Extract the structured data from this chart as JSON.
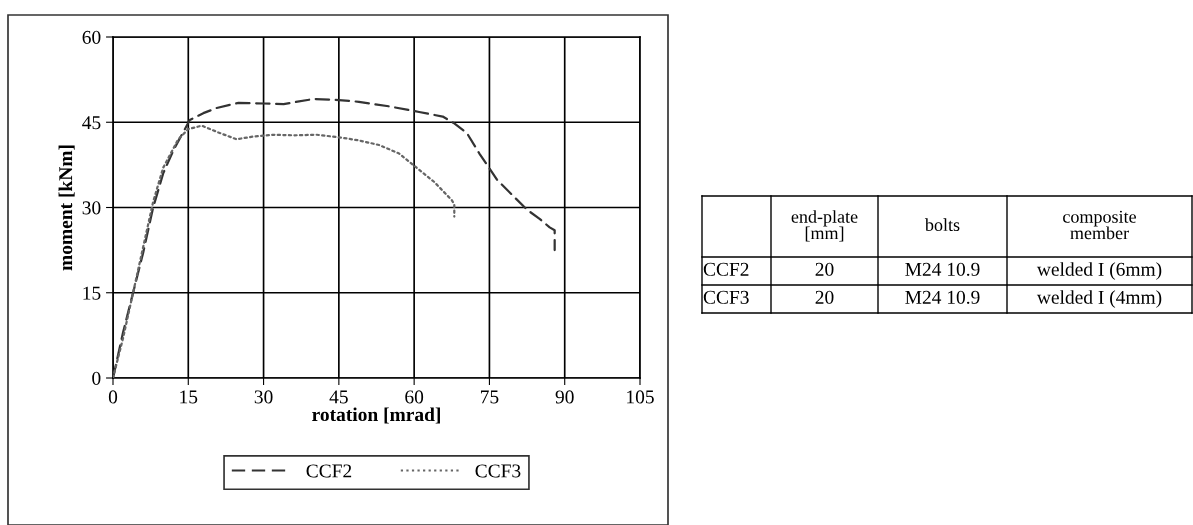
{
  "chart_data": [
    {
      "type": "line",
      "xlabel": "rotation [mrad]",
      "ylabel": "moment [kNm]",
      "xlim": [
        0,
        105
      ],
      "xticks": [
        0,
        15,
        30,
        45,
        60,
        75,
        90,
        105
      ],
      "ylim": [
        0,
        60
      ],
      "yticks": [
        0,
        15,
        30,
        45,
        60
      ],
      "grid": true,
      "legend": "bottom",
      "marker": "none",
      "series": [
        {
          "name": "CCF2",
          "color": "#333333",
          "line_style": "dashed",
          "x": [
            0,
            2,
            4,
            6,
            8,
            10,
            12,
            15.3,
            18,
            20.6,
            25,
            30,
            34,
            40,
            45,
            49,
            55,
            61,
            65.7,
            68,
            70.5,
            73,
            76.5,
            80,
            82.5,
            85,
            87,
            88,
            88
          ],
          "values": [
            0,
            8,
            15,
            22,
            30,
            36,
            40,
            45.4,
            46.6,
            47.5,
            48.4,
            48.3,
            48.2,
            49.1,
            48.9,
            48.6,
            47.8,
            46.8,
            46,
            44.8,
            43.1,
            39.5,
            34.9,
            31.8,
            29.6,
            28,
            26.5,
            26,
            22.5
          ]
        },
        {
          "name": "CCF3",
          "color": "#666666",
          "line_style": "dotted",
          "x": [
            0,
            2,
            4,
            6,
            8,
            10,
            13,
            15,
            17.7,
            21,
            24.6,
            28,
            32,
            36,
            40.6,
            45.5,
            49,
            53,
            57,
            60.5,
            64,
            67.5,
            68,
            68
          ],
          "values": [
            0,
            7,
            15,
            23,
            31,
            37,
            42,
            43.8,
            44.4,
            43.2,
            42,
            42.5,
            42.8,
            42.7,
            42.8,
            42.3,
            41.8,
            41,
            39.5,
            37,
            34.5,
            31.3,
            30.5,
            28.4
          ]
        }
      ]
    },
    {
      "type": "other",
      "categories": [
        null,
        "end-plate\n[mm]",
        "bolts",
        "composite\nmember"
      ],
      "y_categories": [
        "CCF2",
        "CCF3"
      ],
      "cell_labels": [
        [
          "20",
          "M24 10.9",
          "welded I (6mm)"
        ],
        [
          "20",
          "M24 10.9",
          "welded I (4mm)"
        ]
      ]
    }
  ]
}
